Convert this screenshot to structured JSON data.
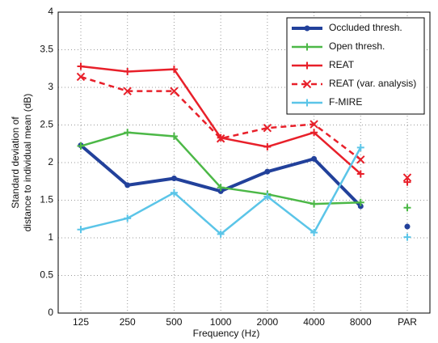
{
  "chart_data": {
    "type": "line",
    "xlabel": "Frequency (Hz)",
    "ylabel": [
      "Standard deviation of",
      "distance to individual mean (dB)"
    ],
    "categories": [
      "125",
      "250",
      "500",
      "1000",
      "2000",
      "4000",
      "8000",
      "PAR"
    ],
    "ylim": [
      0,
      4
    ],
    "yticks": [
      0,
      0.5,
      1,
      1.5,
      2,
      2.5,
      3,
      3.5,
      4
    ],
    "grid": true,
    "legend": "upper right",
    "series": [
      {
        "name": "Occluded thresh.",
        "color": "#22419b",
        "marker": "o",
        "dashed": false,
        "width": 4,
        "values": [
          2.23,
          1.7,
          1.79,
          1.62,
          1.88,
          2.05,
          1.42,
          null
        ],
        "par_value": 1.15
      },
      {
        "name": "Open thresh.",
        "color": "#4cb847",
        "marker": "+",
        "dashed": false,
        "width": 2.5,
        "values": [
          2.22,
          2.4,
          2.35,
          1.67,
          1.58,
          1.45,
          1.47,
          null
        ],
        "par_value": 1.4
      },
      {
        "name": "REAT",
        "color": "#e8202a",
        "marker": "+",
        "dashed": false,
        "width": 2.5,
        "values": [
          3.28,
          3.21,
          3.24,
          2.33,
          2.21,
          2.4,
          1.85,
          null
        ],
        "par_value": 1.74
      },
      {
        "name": "REAT (var. analysis)",
        "color": "#e8202a",
        "marker": "x",
        "dashed": true,
        "width": 2.5,
        "values": [
          3.14,
          2.95,
          2.95,
          2.32,
          2.46,
          2.51,
          2.04,
          null
        ],
        "par_value": 1.8
      },
      {
        "name": "F-MIRE",
        "color": "#5bc5e8",
        "marker": "+",
        "dashed": false,
        "width": 2.5,
        "values": [
          1.11,
          1.26,
          1.6,
          1.05,
          1.55,
          1.07,
          2.2,
          null
        ],
        "par_value": 1.01
      }
    ]
  }
}
